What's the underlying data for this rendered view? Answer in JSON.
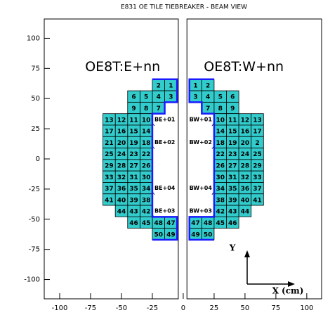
{
  "title": "E831 OE TILE TIEBREAKER  - BEAM VIEW",
  "x_axis": {
    "lim": [
      -112.5,
      112
    ],
    "ticks": [
      -100,
      -75,
      -50,
      -25,
      0,
      25,
      50,
      75,
      100
    ]
  },
  "y_axis": {
    "lim": [
      -116,
      116
    ],
    "ticks": [
      -100,
      -75,
      -50,
      -25,
      0,
      25,
      50,
      75,
      100
    ]
  },
  "panels": [
    {
      "side": "left",
      "label": "OE8T:E+nn",
      "rows": [
        [
          "1",
          "2"
        ],
        [
          "3",
          "4",
          "5",
          "6"
        ],
        [
          null,
          "7",
          "8",
          "9"
        ],
        [
          null,
          null,
          "10",
          "11",
          "12",
          "13"
        ],
        [
          null,
          null,
          "14",
          "15",
          "16",
          "17"
        ],
        [
          null,
          null,
          "18",
          "19",
          "20",
          "21"
        ],
        [
          null,
          null,
          "22",
          "23",
          "24",
          "25"
        ],
        [
          null,
          null,
          "26",
          "27",
          "28",
          "29"
        ],
        [
          null,
          null,
          "30",
          "31",
          "32",
          "33"
        ],
        [
          null,
          null,
          "34",
          "35",
          "36",
          "37"
        ],
        [
          null,
          null,
          "38",
          "39",
          "40",
          "41"
        ],
        [
          null,
          null,
          "42",
          "43",
          "44"
        ],
        [
          "47",
          "48",
          "45",
          "46"
        ],
        [
          "49",
          "50"
        ]
      ],
      "row_tags": [
        null,
        null,
        null,
        "BE+01",
        null,
        "BE+02",
        null,
        null,
        null,
        "BE+04",
        null,
        "BE+03",
        null,
        null
      ]
    },
    {
      "side": "right",
      "label": "OE8T:W+nn",
      "rows": [
        [
          "1",
          "2"
        ],
        [
          "3",
          "4",
          "5",
          "6"
        ],
        [
          null,
          "7",
          "8",
          "9"
        ],
        [
          null,
          null,
          "10",
          "11",
          "12",
          "13"
        ],
        [
          null,
          null,
          "14",
          "15",
          "16",
          "17"
        ],
        [
          null,
          null,
          "18",
          "19",
          "20",
          "2"
        ],
        [
          null,
          null,
          "22",
          "23",
          "24",
          "25"
        ],
        [
          null,
          null,
          "26",
          "27",
          "28",
          "29"
        ],
        [
          null,
          null,
          "30",
          "31",
          "32",
          "33"
        ],
        [
          null,
          null,
          "34",
          "35",
          "36",
          "37"
        ],
        [
          null,
          null,
          "38",
          "39",
          "40",
          "41"
        ],
        [
          null,
          null,
          "42",
          "43",
          "44"
        ],
        [
          "47",
          "48",
          "45",
          "46"
        ],
        [
          "49",
          "50"
        ]
      ],
      "row_tags": [
        null,
        null,
        null,
        "BW+01",
        null,
        "BW+02",
        null,
        null,
        null,
        "BW+04",
        null,
        "BW+03",
        null,
        null
      ]
    }
  ],
  "annotations": {
    "y_arrow": "Y",
    "x_arrow": "X (cm)"
  }
}
